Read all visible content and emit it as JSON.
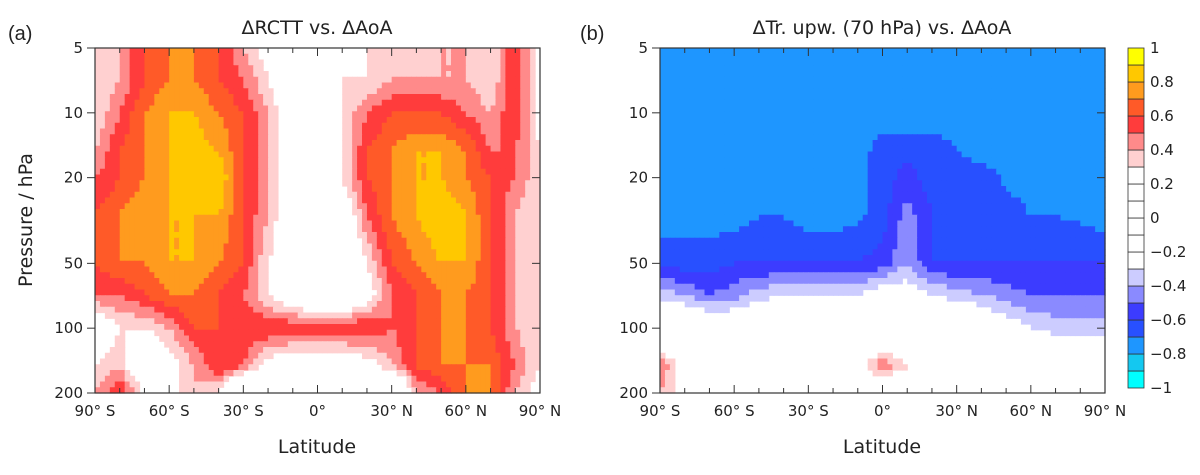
{
  "colorbar": {
    "levels": [
      -1,
      -0.9,
      -0.8,
      -0.7,
      -0.6,
      -0.5,
      -0.4,
      -0.3,
      -0.2,
      -0.1,
      0,
      0.1,
      0.2,
      0.3,
      0.4,
      0.5,
      0.6,
      0.7,
      0.8,
      0.9,
      1
    ],
    "colors": [
      "#00ffff",
      "#14c8f0",
      "#1e96ff",
      "#2850ff",
      "#3c3cff",
      "#8a8aff",
      "#ccccff",
      "#ffffff",
      "#ffffff",
      "#ffffff",
      "#ffffff",
      "#ffffff",
      "#ffffff",
      "#ffd0d0",
      "#ff8a8a",
      "#ff3c3c",
      "#ff5a28",
      "#ff9b1e",
      "#ffc800",
      "#ffff00"
    ],
    "labels": [
      "1",
      "0.8",
      "0.6",
      "0.4",
      "0.2",
      "0",
      "−0.2",
      "−0.4",
      "−0.6",
      "−0.8",
      "−1"
    ]
  },
  "chart_data": [
    {
      "type": "heatmap",
      "panel_label": "(a)",
      "title": "ΔRCTT  vs.  ΔAoA",
      "xlabel": "Latitude",
      "ylabel": "Pressure  / hPa",
      "xticks": [
        "90° S",
        "60° S",
        "30° S",
        "0°",
        "30° N",
        "60° N",
        "90° N"
      ],
      "yticks": [
        "5",
        "10",
        "20",
        "50",
        "100",
        "200"
      ],
      "xlim": [
        -90,
        90
      ],
      "ylim": [
        200,
        5
      ],
      "yscale": "log",
      "lat": [
        -90,
        -80,
        -70,
        -60,
        -50,
        -40,
        -30,
        -20,
        -10,
        0,
        10,
        20,
        30,
        40,
        50,
        60,
        70,
        80,
        90
      ],
      "pressure": [
        5,
        7,
        10,
        15,
        20,
        30,
        50,
        70,
        100,
        150,
        200
      ],
      "values": [
        [
          0.3,
          0.4,
          0.6,
          0.7,
          0.7,
          0.6,
          0.4,
          0.2,
          0.1,
          0.1,
          0.2,
          0.3,
          0.3,
          0.3,
          0.4,
          0.4,
          0.3,
          0.6,
          0.2
        ],
        [
          0.3,
          0.4,
          0.6,
          0.7,
          0.7,
          0.6,
          0.5,
          0.3,
          0.1,
          0.1,
          0.3,
          0.3,
          0.4,
          0.4,
          0.4,
          0.4,
          0.3,
          0.6,
          0.2
        ],
        [
          0.3,
          0.5,
          0.7,
          0.8,
          0.8,
          0.7,
          0.6,
          0.4,
          0.1,
          0.1,
          0.3,
          0.5,
          0.6,
          0.6,
          0.6,
          0.5,
          0.4,
          0.6,
          0.2
        ],
        [
          0.4,
          0.6,
          0.7,
          0.8,
          0.85,
          0.8,
          0.6,
          0.4,
          0.1,
          0.1,
          0.3,
          0.6,
          0.7,
          0.8,
          0.8,
          0.7,
          0.5,
          0.5,
          0.3
        ],
        [
          0.5,
          0.6,
          0.7,
          0.8,
          0.9,
          0.9,
          0.6,
          0.4,
          0.1,
          0.1,
          0.3,
          0.6,
          0.7,
          0.8,
          0.8,
          0.7,
          0.6,
          0.5,
          0.3
        ],
        [
          0.6,
          0.7,
          0.8,
          0.8,
          0.8,
          0.8,
          0.6,
          0.4,
          0.1,
          0.0,
          0.1,
          0.5,
          0.7,
          0.8,
          0.9,
          0.8,
          0.6,
          0.4,
          0.3
        ],
        [
          0.6,
          0.7,
          0.7,
          0.8,
          0.8,
          0.7,
          0.6,
          0.3,
          0.1,
          0.0,
          0.0,
          0.3,
          0.6,
          0.7,
          0.8,
          0.8,
          0.6,
          0.4,
          0.3
        ],
        [
          0.5,
          0.5,
          0.6,
          0.7,
          0.7,
          0.6,
          0.5,
          0.3,
          0.1,
          0.0,
          0.0,
          0.2,
          0.5,
          0.6,
          0.7,
          0.7,
          0.6,
          0.4,
          0.3
        ],
        [
          0.1,
          0.3,
          0.3,
          0.4,
          0.6,
          0.6,
          0.6,
          0.6,
          0.6,
          0.6,
          0.6,
          0.6,
          0.5,
          0.6,
          0.7,
          0.7,
          0.6,
          0.4,
          0.3
        ],
        [
          0.3,
          0.4,
          0.0,
          0.2,
          0.4,
          0.6,
          0.5,
          0.2,
          0.1,
          0.1,
          0.1,
          0.2,
          0.4,
          0.6,
          0.7,
          0.7,
          0.7,
          0.5,
          0.3
        ],
        [
          0.4,
          0.6,
          0.3,
          0.2,
          0.4,
          0.3,
          -0.3,
          0.1,
          0.1,
          0.1,
          0.1,
          0.0,
          -0.3,
          0.4,
          0.5,
          0.7,
          0.7,
          0.4,
          0.2
        ]
      ]
    },
    {
      "type": "heatmap",
      "panel_label": "(b)",
      "title": "ΔTr. upw. (70 hPa)  vs.  ΔAoA",
      "xlabel": "Latitude",
      "ylabel": "",
      "xticks": [
        "90° S",
        "60° S",
        "30° S",
        "0°",
        "30° N",
        "60° N",
        "90° N"
      ],
      "yticks": [
        "5",
        "10",
        "20",
        "50",
        "100",
        "200"
      ],
      "xlim": [
        -90,
        90
      ],
      "ylim": [
        200,
        5
      ],
      "yscale": "log",
      "lat": [
        -90,
        -80,
        -70,
        -60,
        -50,
        -40,
        -30,
        -20,
        -10,
        0,
        10,
        20,
        30,
        40,
        50,
        60,
        70,
        80,
        90
      ],
      "pressure": [
        5,
        7,
        10,
        15,
        20,
        30,
        50,
        70,
        100,
        150,
        200
      ],
      "values": [
        [
          -0.75,
          -0.75,
          -0.75,
          -0.75,
          -0.75,
          -0.75,
          -0.75,
          -0.75,
          -0.75,
          -0.75,
          -0.75,
          -0.75,
          -0.75,
          -0.75,
          -0.75,
          -0.75,
          -0.75,
          -0.75,
          -0.75
        ],
        [
          -0.75,
          -0.75,
          -0.75,
          -0.75,
          -0.75,
          -0.75,
          -0.75,
          -0.75,
          -0.75,
          -0.75,
          -0.75,
          -0.75,
          -0.75,
          -0.75,
          -0.75,
          -0.75,
          -0.75,
          -0.75,
          -0.75
        ],
        [
          -0.75,
          -0.75,
          -0.75,
          -0.75,
          -0.75,
          -0.75,
          -0.75,
          -0.75,
          -0.75,
          -0.75,
          -0.75,
          -0.75,
          -0.75,
          -0.75,
          -0.75,
          -0.75,
          -0.75,
          -0.75,
          -0.75
        ],
        [
          -0.75,
          -0.75,
          -0.75,
          -0.75,
          -0.75,
          -0.75,
          -0.75,
          -0.75,
          -0.75,
          -0.65,
          -0.65,
          -0.65,
          -0.7,
          -0.75,
          -0.75,
          -0.75,
          -0.75,
          -0.75,
          -0.75
        ],
        [
          -0.75,
          -0.75,
          -0.75,
          -0.75,
          -0.75,
          -0.75,
          -0.75,
          -0.75,
          -0.75,
          -0.65,
          -0.55,
          -0.65,
          -0.65,
          -0.65,
          -0.72,
          -0.75,
          -0.75,
          -0.75,
          -0.75
        ],
        [
          -0.75,
          -0.75,
          -0.75,
          -0.75,
          -0.7,
          -0.7,
          -0.75,
          -0.75,
          -0.72,
          -0.65,
          -0.45,
          -0.6,
          -0.65,
          -0.65,
          -0.65,
          -0.7,
          -0.7,
          -0.72,
          -0.75
        ],
        [
          -0.65,
          -0.65,
          -0.65,
          -0.6,
          -0.6,
          -0.6,
          -0.6,
          -0.6,
          -0.6,
          -0.55,
          -0.4,
          -0.6,
          -0.6,
          -0.6,
          -0.6,
          -0.6,
          -0.6,
          -0.6,
          -0.6
        ],
        [
          -0.35,
          -0.4,
          -0.5,
          -0.45,
          -0.35,
          -0.3,
          -0.3,
          -0.3,
          -0.3,
          -0.2,
          -0.2,
          -0.3,
          -0.35,
          -0.4,
          -0.45,
          -0.5,
          -0.5,
          -0.5,
          -0.5
        ],
        [
          0,
          0,
          -0.1,
          -0.1,
          0,
          0,
          0,
          0,
          0,
          0,
          0,
          0,
          0,
          -0.1,
          -0.2,
          -0.3,
          -0.35,
          -0.35,
          -0.35
        ],
        [
          0.5,
          0.2,
          0,
          0,
          0,
          0,
          0.2,
          0.1,
          0.2,
          0.5,
          0.3,
          0,
          0,
          0,
          0,
          0,
          0,
          0,
          0
        ],
        [
          0.4,
          0.2,
          0,
          0,
          0,
          0,
          0.3,
          0.1,
          0,
          0,
          0,
          0,
          0,
          0,
          0,
          0,
          -0.3,
          -0.3,
          -0.3
        ]
      ]
    }
  ]
}
